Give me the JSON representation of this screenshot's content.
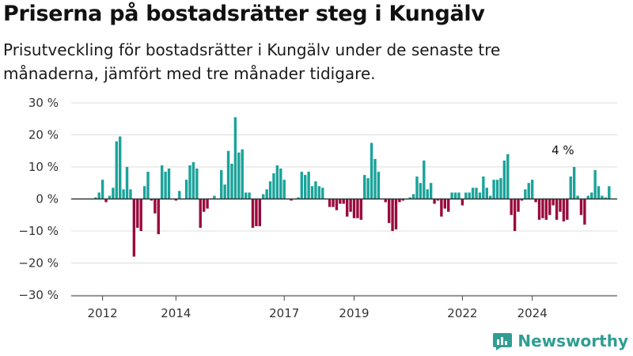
{
  "title": "Priserna på bostadsrätter steg i Kungälv",
  "subtitle": "Prisutveckling för bostadsrätter i Kungälv under de senaste tre månaderna, jämfört med tre månader tidigare.",
  "brand": {
    "name": "Newsworthy",
    "icon": "newsworthy-logo-icon",
    "color": "#2f9e93"
  },
  "colors": {
    "positive": "#1aa39a",
    "negative": "#990a3d",
    "zero_line": "#333333",
    "grid": "#dddddd"
  },
  "chart_data": {
    "type": "bar",
    "title": "Priserna på bostadsrätter steg i Kungälv",
    "xlabel": "",
    "ylabel": "",
    "ylim": [
      -30,
      30
    ],
    "yticks": [
      -30,
      -20,
      -10,
      0,
      10,
      20,
      30
    ],
    "ytick_labels": [
      "−30 %",
      "−20 %",
      "−10 %",
      "0 %",
      "10 %",
      "20 %",
      "30 %"
    ],
    "xticks": [
      {
        "label": "2012",
        "index": 2
      },
      {
        "label": "2014",
        "index": 23
      },
      {
        "label": "2017",
        "index": 54
      },
      {
        "label": "2019",
        "index": 74
      },
      {
        "label": "2022",
        "index": 105
      },
      {
        "label": "2024",
        "index": 125
      }
    ],
    "grid": true,
    "annotations": [
      {
        "text": "4 %",
        "index": 137
      }
    ],
    "values": [
      0.5,
      2,
      6,
      -1,
      1,
      3.5,
      18,
      19.5,
      3,
      10,
      3,
      -18,
      -9,
      -10,
      4,
      8.5,
      -0.5,
      -4.5,
      -11,
      10.5,
      8.5,
      9.5,
      0,
      -0.5,
      2.5,
      0,
      6,
      10.5,
      11.5,
      9.5,
      -9,
      -4,
      -3,
      0,
      1,
      0,
      9,
      4.5,
      15,
      11,
      25.5,
      14.5,
      15.5,
      2,
      2,
      -9,
      -8.5,
      -8.5,
      1.5,
      3,
      5.5,
      8,
      10.5,
      9.5,
      6,
      0,
      -0.5,
      0,
      0.5,
      8.5,
      7.5,
      8.5,
      4,
      5.5,
      4,
      3.5,
      0,
      -2.5,
      -2.5,
      -3.5,
      -1.5,
      -1.5,
      -5.5,
      -4,
      -6,
      -6,
      -6.5,
      7.5,
      6.5,
      17.5,
      12.5,
      8.5,
      0,
      -1,
      -7.5,
      -10,
      -9.5,
      -1,
      -0.5,
      0,
      0.5,
      1.5,
      7,
      5,
      12,
      3,
      5,
      -1.5,
      -0.5,
      -5.5,
      -3,
      -4,
      2,
      2,
      2,
      -2,
      2,
      2,
      3.5,
      3.5,
      2,
      7,
      3.5,
      1,
      6,
      6,
      6.5,
      12,
      14,
      -5,
      -10,
      -4,
      -0.5,
      3,
      5,
      6,
      -1,
      -6.5,
      -6,
      -6.5,
      -5,
      -2,
      -6.5,
      -4,
      -7,
      -6.5,
      7,
      10,
      1,
      -5,
      -8,
      1,
      2,
      9,
      4,
      1,
      0.5,
      4
    ]
  }
}
